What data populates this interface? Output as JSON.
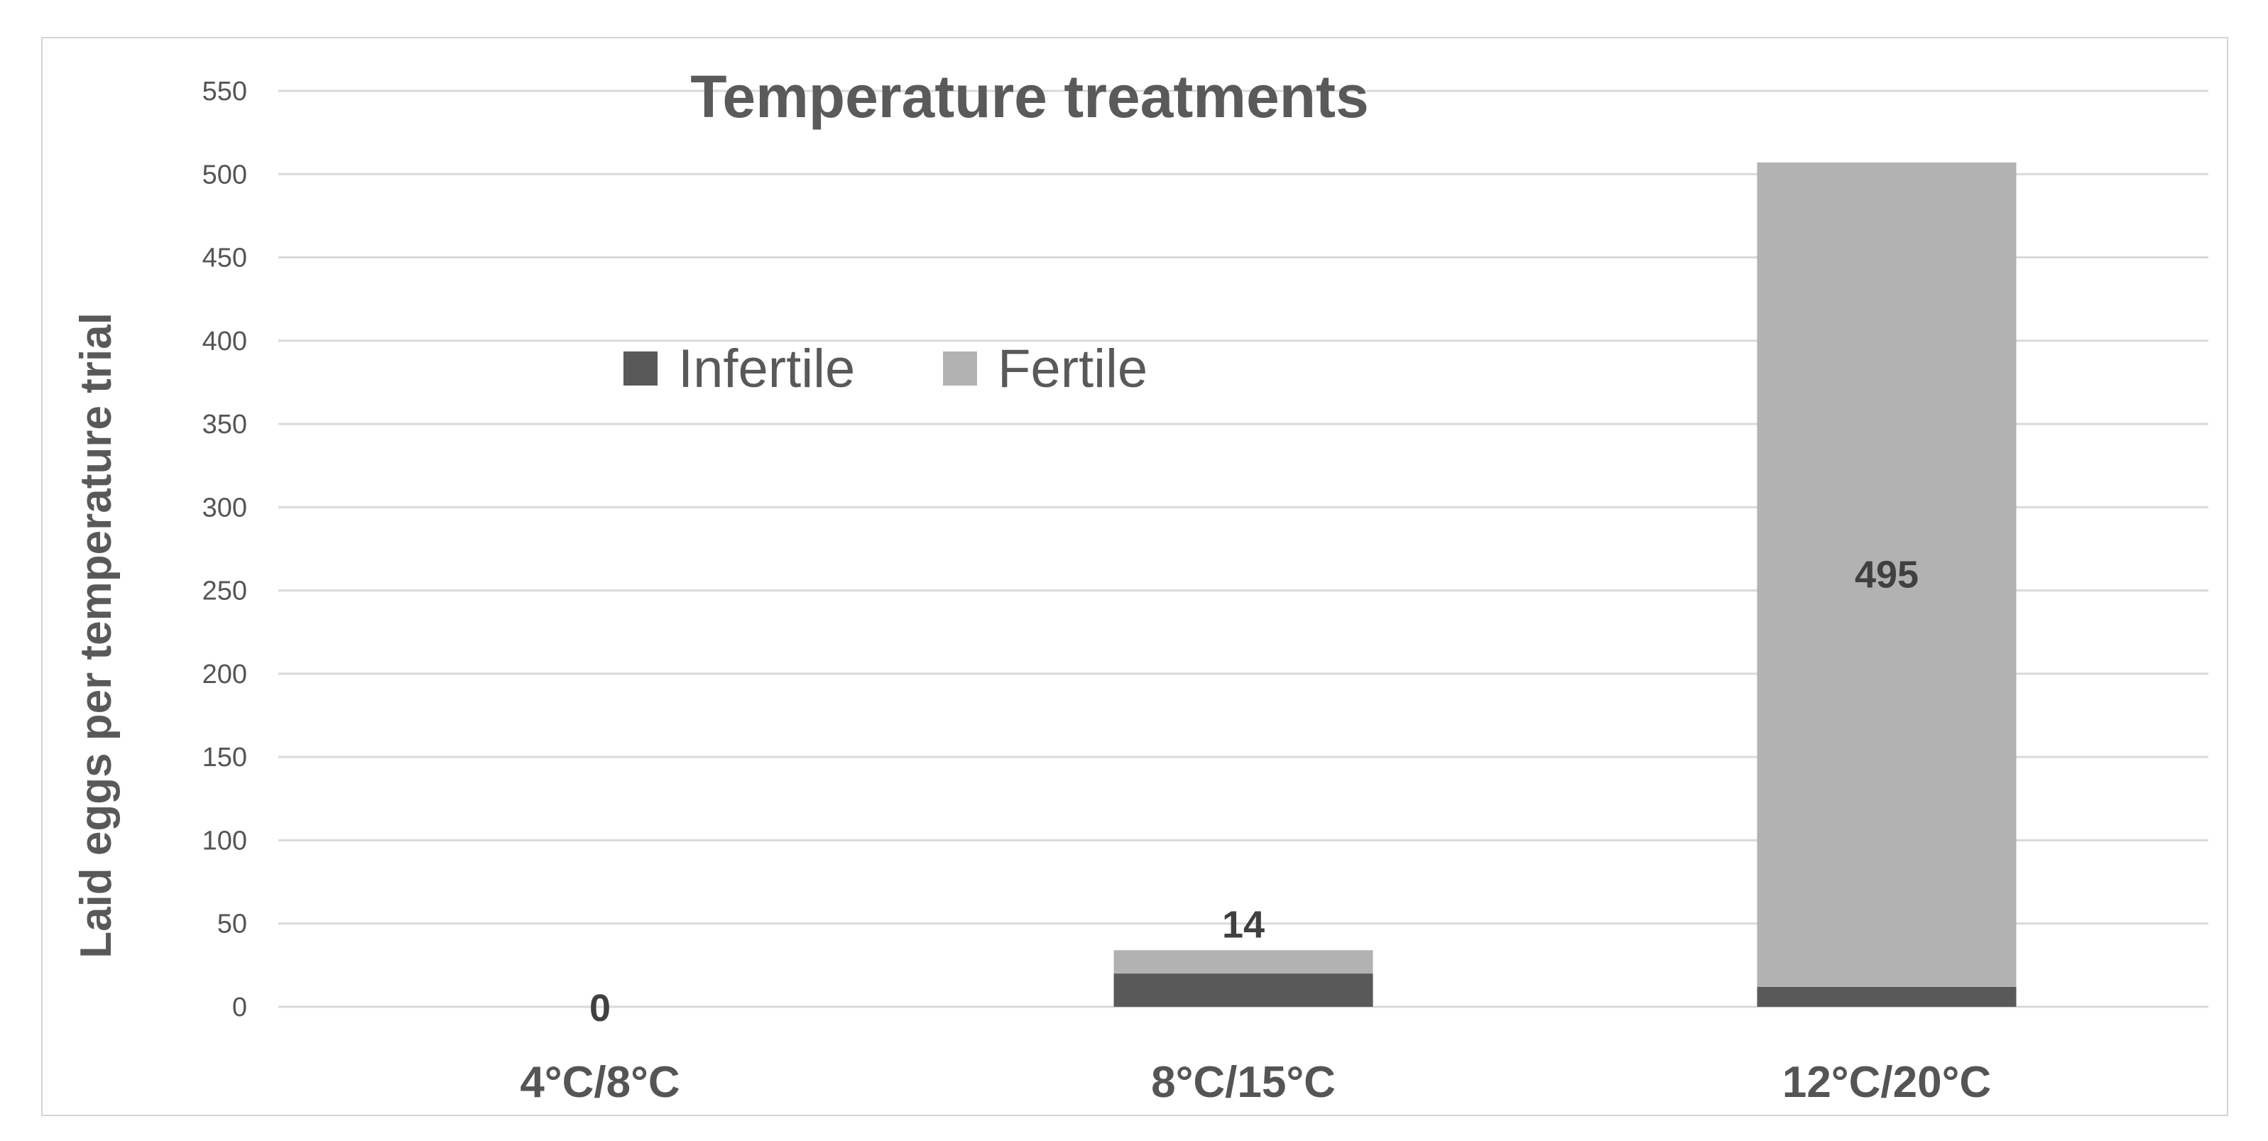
{
  "chart_data": {
    "type": "bar",
    "stacked": true,
    "title": "Temperature treatments",
    "xlabel": "",
    "ylabel": "Laid eggs per temperature trial",
    "categories": [
      "4°C/8°C",
      "8°C/15°C",
      "12°C/20°C"
    ],
    "ylim": [
      0,
      550
    ],
    "yticks": [
      0,
      50,
      100,
      150,
      200,
      250,
      300,
      350,
      400,
      450,
      500,
      550
    ],
    "grid": true,
    "legend_position": "top-left (inside plot)",
    "series": [
      {
        "name": "Infertile",
        "color": "#595959",
        "values": [
          0,
          20,
          12
        ]
      },
      {
        "name": "Fertile",
        "color": "#b2b2b2",
        "values": [
          0,
          14,
          495
        ]
      }
    ],
    "data_labels": [
      "0",
      "14",
      "495"
    ],
    "colors": {
      "gridline": "#d9d9d9",
      "frame": "#d4d4d4",
      "text": "#555555"
    }
  }
}
